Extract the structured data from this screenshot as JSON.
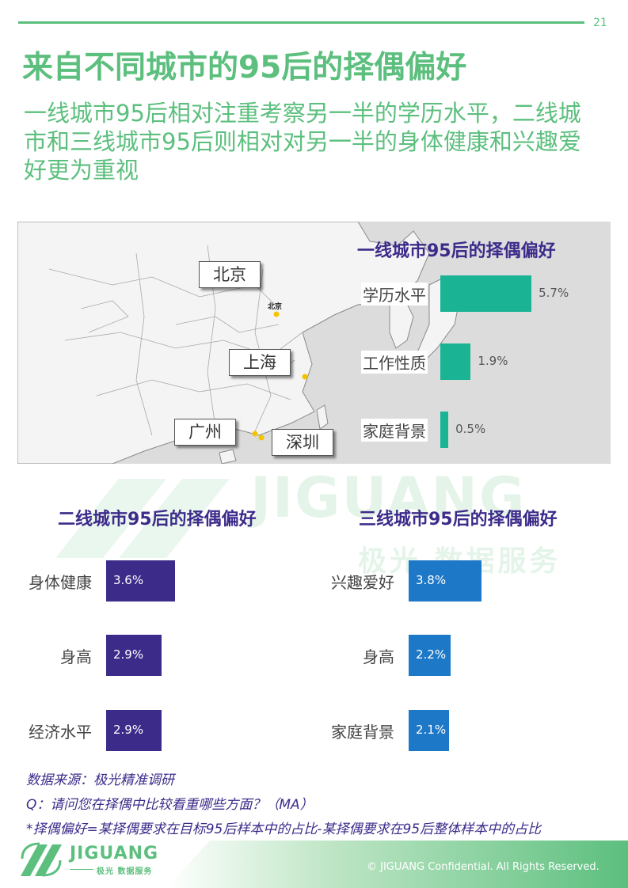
{
  "page_number": "21",
  "title": "来自不同城市的95后的择偶偏好",
  "subtitle": "一线城市95后相对注重考察另一半的学历水平，二线城市和三线城市95后则相对对另一半的身体健康和兴趣爱好更为重视",
  "map": {
    "cities": [
      "北京",
      "上海",
      "广州",
      "深圳"
    ],
    "marker_label": "北京"
  },
  "watermark": {
    "brand": "JIGUANG",
    "tagline": "极光 数据服务"
  },
  "chart_data": [
    {
      "type": "bar",
      "orientation": "horizontal",
      "title": "一线城市95后的择偶偏好",
      "categories": [
        "学历水平",
        "工作性质",
        "家庭背景"
      ],
      "values": [
        5.7,
        1.9,
        0.5
      ],
      "labels": [
        "5.7%",
        "1.9%",
        "0.5%"
      ],
      "unit": "%",
      "color": "#1ab394"
    },
    {
      "type": "bar",
      "orientation": "horizontal",
      "title": "二线城市95后的择偶偏好",
      "categories": [
        "身体健康",
        "身高",
        "经济水平"
      ],
      "values": [
        3.6,
        2.9,
        2.9
      ],
      "labels": [
        "3.6%",
        "2.9%",
        "2.9%"
      ],
      "unit": "%",
      "color": "#3d2b8a"
    },
    {
      "type": "bar",
      "orientation": "horizontal",
      "title": "三线城市95后的择偶偏好",
      "categories": [
        "兴趣爱好",
        "身高",
        "家庭背景"
      ],
      "values": [
        3.8,
        2.2,
        2.1
      ],
      "labels": [
        "3.8%",
        "2.2%",
        "2.1%"
      ],
      "unit": "%",
      "color": "#1e78c8"
    }
  ],
  "notes": {
    "source": "数据来源：极光精准调研",
    "question": "Q：请问您在择偶中比较看重哪些方面？（MA）",
    "definition": "*择偶偏好=某择偶要求在目标95后样本中的占比-某择偶要求在95后整体样本中的占比"
  },
  "footer": {
    "logo_text": "JIGUANG",
    "logo_sub": "极光 数据服务",
    "copyright": "© JIGUANG  Confidential. All Rights Reserved."
  },
  "colors": {
    "brand_green": "#5cbf7e",
    "title_purple": "#3d2b8a"
  }
}
